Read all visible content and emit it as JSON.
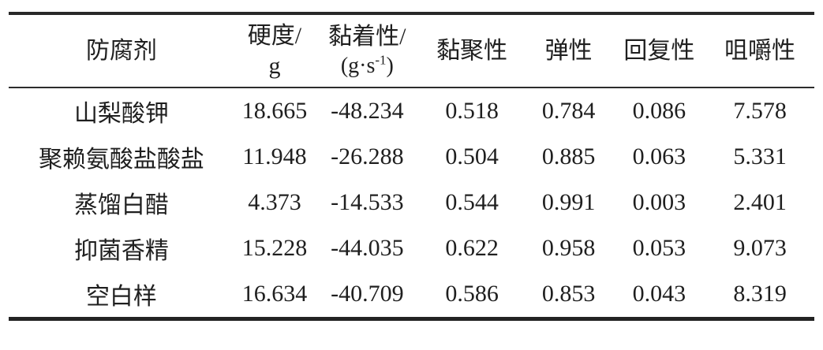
{
  "table": {
    "columns": {
      "preservative": {
        "label": "防腐剂"
      },
      "hardness": {
        "line1": "硬度/",
        "line2": "g"
      },
      "adhesiveness": {
        "line1": "黏着性/",
        "unit_prefix": "(g·s",
        "unit_sup": "-1",
        "unit_suffix": ")"
      },
      "cohesiveness": {
        "label": "黏聚性"
      },
      "springiness": {
        "label": "弹性"
      },
      "resilience": {
        "label": "回复性"
      },
      "chewiness": {
        "label": "咀嚼性"
      }
    },
    "rows": [
      {
        "name": "山梨酸钾",
        "hardness": "18.665",
        "adhesiveness": "-48.234",
        "cohesiveness": "0.518",
        "springiness": "0.784",
        "resilience": "0.086",
        "chewiness": "7.578"
      },
      {
        "name": "聚赖氨酸盐酸盐",
        "hardness": "11.948",
        "adhesiveness": "-26.288",
        "cohesiveness": "0.504",
        "springiness": "0.885",
        "resilience": "0.063",
        "chewiness": "5.331"
      },
      {
        "name": "蒸馏白醋",
        "hardness": "4.373",
        "adhesiveness": "-14.533",
        "cohesiveness": "0.544",
        "springiness": "0.991",
        "resilience": "0.003",
        "chewiness": "2.401"
      },
      {
        "name": "抑菌香精",
        "hardness": "15.228",
        "adhesiveness": "-44.035",
        "cohesiveness": "0.622",
        "springiness": "0.958",
        "resilience": "0.053",
        "chewiness": "9.073"
      },
      {
        "name": "空白样",
        "hardness": "16.634",
        "adhesiveness": "-40.709",
        "cohesiveness": "0.586",
        "springiness": "0.853",
        "resilience": "0.043",
        "chewiness": "8.319"
      }
    ],
    "colors": {
      "text": "#1f1f1f",
      "rule": "#282828",
      "background": "#ffffff"
    }
  }
}
